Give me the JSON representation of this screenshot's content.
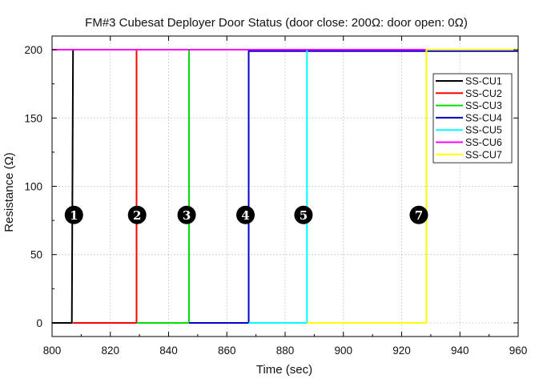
{
  "chart_data": {
    "type": "line",
    "title": "FM#3 Cubesat Deployer Door Status (door close: 200Ω: door open: 0Ω)",
    "xlabel": "Time (sec)",
    "ylabel": "Resistance (Ω)",
    "xlim": [
      800,
      960
    ],
    "ylim": [
      -10,
      210
    ],
    "xticks": [
      800,
      820,
      840,
      860,
      880,
      900,
      920,
      940,
      960
    ],
    "yticks": [
      0,
      50,
      100,
      150,
      200
    ],
    "grid": true,
    "legend_position": "top-right",
    "series": [
      {
        "name": "SS-CU1",
        "color": "#000000",
        "x": [
          800,
          806.8,
          807.2,
          960
        ],
        "y": [
          0,
          0,
          200,
          200
        ]
      },
      {
        "name": "SS-CU2",
        "color": "#ff0000",
        "x": [
          807.2,
          829.0,
          829.0,
          960
        ],
        "y": [
          0,
          0,
          200,
          200
        ]
      },
      {
        "name": "SS-CU3",
        "color": "#00dd00",
        "x": [
          829.0,
          847.0,
          847.0,
          960
        ],
        "y": [
          0,
          0,
          200,
          200
        ]
      },
      {
        "name": "SS-CU4",
        "color": "#0000cc",
        "x": [
          847.0,
          867.5,
          867.5,
          960
        ],
        "y": [
          0,
          0,
          199,
          199
        ]
      },
      {
        "name": "SS-CU5",
        "color": "#00ffff",
        "x": [
          867.5,
          887.5,
          887.5,
          960
        ],
        "y": [
          0,
          0,
          200,
          200
        ]
      },
      {
        "name": "SS-CU6",
        "color": "#ff00ff",
        "x": [
          800,
          960
        ],
        "y": [
          200,
          200
        ]
      },
      {
        "name": "SS-CU7",
        "color": "#ffff00",
        "x": [
          887.5,
          928.5,
          928.5,
          960
        ],
        "y": [
          0,
          0,
          200,
          200
        ]
      }
    ],
    "annotations": [
      {
        "label": "1",
        "x": 807.5,
        "y": 79
      },
      {
        "label": "2",
        "x": 829.2,
        "y": 79
      },
      {
        "label": "3",
        "x": 846.2,
        "y": 79
      },
      {
        "label": "4",
        "x": 866.4,
        "y": 79
      },
      {
        "label": "5",
        "x": 886.3,
        "y": 79
      },
      {
        "label": "7",
        "x": 925.9,
        "y": 79
      }
    ]
  }
}
